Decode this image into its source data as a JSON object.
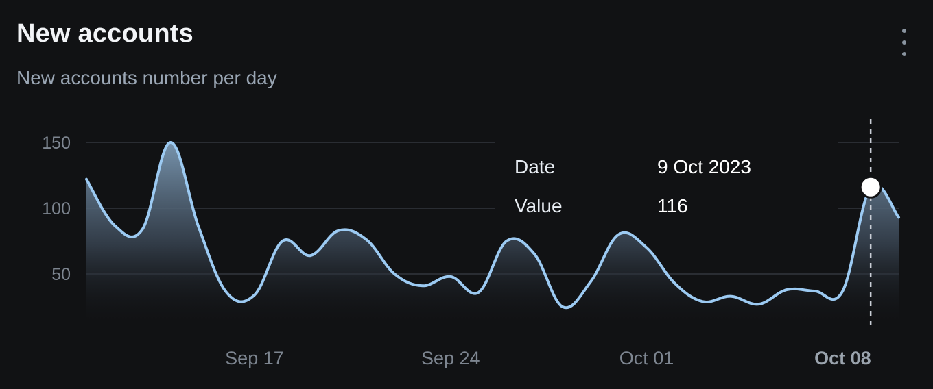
{
  "card": {
    "title": "New accounts",
    "subtitle": "New accounts number per day",
    "menu_icon": "more-vertical-icon"
  },
  "tooltip": {
    "date_label": "Date",
    "date_value": "9 Oct 2023",
    "value_label": "Value",
    "value_value": "116"
  },
  "colors": {
    "background": "#111214",
    "line": "#9ccaf2",
    "grid": "#2a2d33",
    "tick": "#7d8590"
  },
  "chart_data": {
    "type": "area",
    "title": "New accounts",
    "subtitle": "New accounts number per day",
    "xlabel": "",
    "ylabel": "",
    "ylim": [
      20,
      160
    ],
    "yticks": [
      50,
      100,
      150
    ],
    "grid": true,
    "legend": "none",
    "x_ticks": [
      {
        "label": "Sep 17",
        "date": "2023-09-17"
      },
      {
        "label": "Sep 24",
        "date": "2023-09-24"
      },
      {
        "label": "Oct 01",
        "date": "2023-10-01"
      },
      {
        "label": "Oct 08",
        "date": "2023-10-08",
        "active": true
      }
    ],
    "x": [
      "2023-09-11",
      "2023-09-12",
      "2023-09-13",
      "2023-09-14",
      "2023-09-15",
      "2023-09-16",
      "2023-09-17",
      "2023-09-18",
      "2023-09-19",
      "2023-09-20",
      "2023-09-21",
      "2023-09-22",
      "2023-09-23",
      "2023-09-24",
      "2023-09-25",
      "2023-09-26",
      "2023-09-27",
      "2023-09-28",
      "2023-09-29",
      "2023-09-30",
      "2023-10-01",
      "2023-10-02",
      "2023-10-03",
      "2023-10-04",
      "2023-10-05",
      "2023-10-06",
      "2023-10-07",
      "2023-10-08",
      "2023-10-09",
      "2023-10-10"
    ],
    "values": [
      122,
      87,
      84,
      150,
      86,
      36,
      34,
      75,
      64,
      83,
      76,
      50,
      41,
      48,
      36,
      75,
      65,
      25,
      44,
      80,
      70,
      43,
      29,
      33,
      27,
      38,
      37,
      37,
      116,
      93
    ],
    "highlight": {
      "date": "2023-10-09",
      "value": 116
    }
  }
}
